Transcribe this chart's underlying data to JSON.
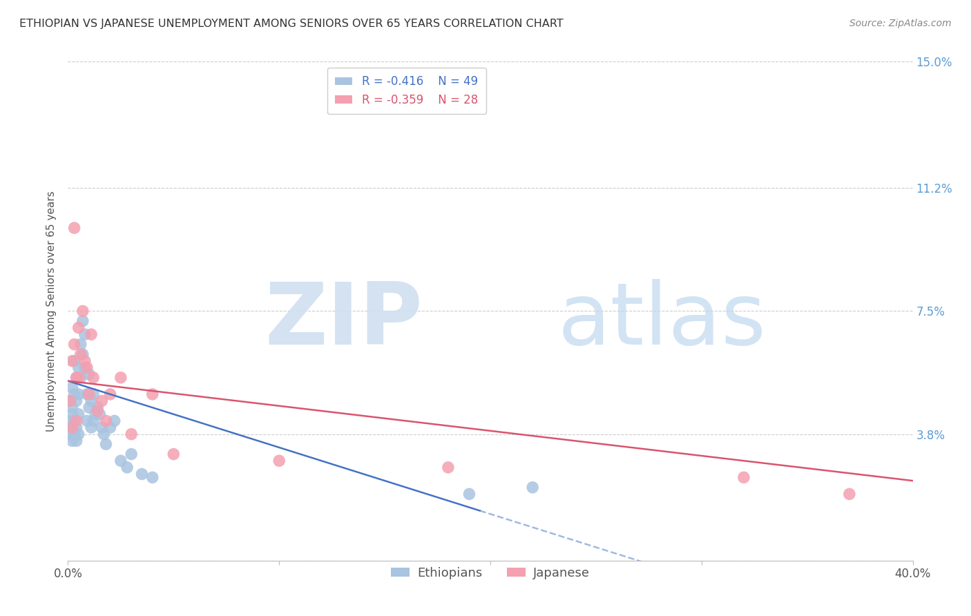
{
  "title": "ETHIOPIAN VS JAPANESE UNEMPLOYMENT AMONG SENIORS OVER 65 YEARS CORRELATION CHART",
  "source": "Source: ZipAtlas.com",
  "ylabel": "Unemployment Among Seniors over 65 years",
  "xlim": [
    0.0,
    0.4
  ],
  "ylim": [
    0.0,
    0.15
  ],
  "yticks": [
    0.0,
    0.038,
    0.075,
    0.112,
    0.15
  ],
  "ytick_labels_right": [
    "",
    "3.8%",
    "7.5%",
    "11.2%",
    "15.0%"
  ],
  "xticks": [
    0.0,
    0.1,
    0.2,
    0.3,
    0.4
  ],
  "xtick_labels": [
    "0.0%",
    "",
    "",
    "",
    "40.0%"
  ],
  "grid_color": "#cccccc",
  "background_color": "#ffffff",
  "ethiopians_color": "#a8c4e0",
  "japanese_color": "#f4a0b0",
  "trendline_eth_color": "#4472c4",
  "trendline_jap_color": "#d9546e",
  "legend_eth_r": "-0.416",
  "legend_eth_n": "49",
  "legend_jap_r": "-0.359",
  "legend_jap_n": "28",
  "eth_trendline_solid_end": 0.195,
  "eth_trendline_dash_start": 0.195,
  "eth_trendline_dash_end": 0.4,
  "ethiopians_x": [
    0.001,
    0.001,
    0.001,
    0.002,
    0.002,
    0.002,
    0.002,
    0.002,
    0.003,
    0.003,
    0.003,
    0.003,
    0.004,
    0.004,
    0.004,
    0.004,
    0.005,
    0.005,
    0.005,
    0.005,
    0.006,
    0.006,
    0.007,
    0.007,
    0.008,
    0.008,
    0.009,
    0.009,
    0.01,
    0.01,
    0.011,
    0.011,
    0.012,
    0.012,
    0.013,
    0.014,
    0.015,
    0.016,
    0.017,
    0.018,
    0.02,
    0.022,
    0.025,
    0.028,
    0.03,
    0.035,
    0.04,
    0.19,
    0.22
  ],
  "ethiopians_y": [
    0.042,
    0.038,
    0.048,
    0.044,
    0.04,
    0.036,
    0.052,
    0.046,
    0.06,
    0.05,
    0.042,
    0.038,
    0.055,
    0.048,
    0.04,
    0.036,
    0.058,
    0.05,
    0.044,
    0.038,
    0.065,
    0.055,
    0.072,
    0.062,
    0.068,
    0.058,
    0.05,
    0.042,
    0.056,
    0.046,
    0.048,
    0.04,
    0.05,
    0.042,
    0.044,
    0.046,
    0.044,
    0.04,
    0.038,
    0.035,
    0.04,
    0.042,
    0.03,
    0.028,
    0.032,
    0.026,
    0.025,
    0.02,
    0.022
  ],
  "japanese_x": [
    0.001,
    0.002,
    0.002,
    0.003,
    0.003,
    0.004,
    0.004,
    0.005,
    0.005,
    0.006,
    0.007,
    0.008,
    0.009,
    0.01,
    0.011,
    0.012,
    0.014,
    0.016,
    0.018,
    0.02,
    0.025,
    0.03,
    0.04,
    0.05,
    0.1,
    0.18,
    0.32,
    0.37
  ],
  "japanese_y": [
    0.048,
    0.06,
    0.04,
    0.065,
    0.1,
    0.055,
    0.042,
    0.07,
    0.055,
    0.062,
    0.075,
    0.06,
    0.058,
    0.05,
    0.068,
    0.055,
    0.045,
    0.048,
    0.042,
    0.05,
    0.055,
    0.038,
    0.05,
    0.032,
    0.03,
    0.028,
    0.025,
    0.02
  ]
}
